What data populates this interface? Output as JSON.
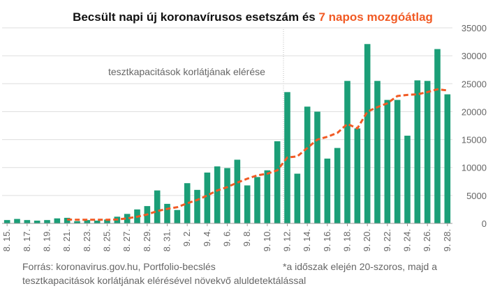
{
  "chart_data": {
    "type": "bar",
    "title": "Becsült napi új koronavírusos esetszám és ",
    "title_highlight": "7 napos mozgóátlag",
    "annotation": "tesztkapacitások korlátjának elérése",
    "source": "Forrás: koronavirus.gov.hu, Portfolio-becslés",
    "note_line1": "*a időszak elején 20-szoros, majd a",
    "note_line2": "tesztkapacitások korlátjának elérésével növekvő aluldetektálással",
    "categories": [
      "8. 15.",
      null,
      "8. 17.",
      null,
      "8. 19.",
      null,
      "8. 21.",
      null,
      "8. 23.",
      null,
      "8. 25.",
      null,
      "8. 27.",
      null,
      "8. 29.",
      null,
      "8. 31.",
      null,
      "9. 2.",
      null,
      "9. 4.",
      null,
      "9. 6.",
      null,
      "9. 8.",
      null,
      "9. 10.",
      null,
      "9. 12.",
      null,
      "9. 14.",
      null,
      "9. 16.",
      null,
      "9. 18.",
      null,
      "9. 20.",
      null,
      "9. 22.",
      null,
      "9. 24.",
      null,
      "9. 26.",
      null,
      "9. 28."
    ],
    "values": [
      600,
      800,
      600,
      500,
      600,
      900,
      1000,
      400,
      600,
      500,
      700,
      1200,
      1700,
      2500,
      3100,
      5900,
      3500,
      2400,
      7200,
      6000,
      9100,
      10200,
      9900,
      11400,
      6800,
      8300,
      9500,
      14700,
      23500,
      8900,
      20900,
      20000,
      11600,
      13500,
      25500,
      17000,
      32100,
      25500,
      22100,
      22100,
      15700,
      25600,
      25500,
      31200,
      23100
    ],
    "color": "#1b9e77",
    "line_values": [
      null,
      null,
      null,
      null,
      null,
      null,
      700,
      650,
      650,
      650,
      650,
      700,
      900,
      1200,
      1600,
      2200,
      2600,
      2900,
      3600,
      4200,
      5000,
      5900,
      6500,
      7300,
      8000,
      8600,
      8900,
      9500,
      11800,
      12000,
      13500,
      15000,
      15500,
      16200,
      17800,
      17000,
      20000,
      20800,
      21500,
      22800,
      23000,
      23100,
      23500,
      24000,
      23800
    ],
    "line_color": "#f15a24",
    "ylim": [
      0,
      35000
    ],
    "yticks": [
      0,
      5000,
      10000,
      15000,
      20000,
      25000,
      30000,
      35000
    ],
    "grid": true
  }
}
